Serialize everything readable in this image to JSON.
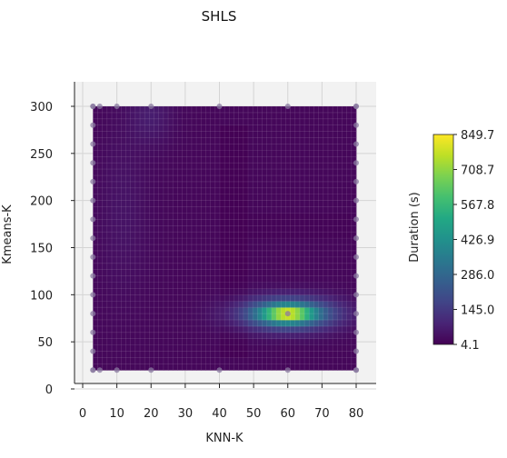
{
  "chart_data": {
    "type": "heatmap",
    "title": "SHLS",
    "xlabel": "KNN-K",
    "ylabel": "Kmeans-K",
    "xlim": [
      0,
      80
    ],
    "ylim": [
      0,
      300
    ],
    "x_ticks": [
      "0",
      "10",
      "20",
      "30",
      "40",
      "50",
      "60",
      "70",
      "80"
    ],
    "y_ticks": [
      "0",
      "50",
      "100",
      "150",
      "200",
      "250",
      "300"
    ],
    "data_extent": {
      "x": [
        3,
        80
      ],
      "y": [
        20,
        300
      ]
    },
    "colorbar": {
      "label": "Duration (s)",
      "ticks": [
        "4.1",
        "145.0",
        "286.0",
        "426.9",
        "567.8",
        "708.7",
        "849.7"
      ],
      "min": 4.1,
      "max": 849.7,
      "colormap": "viridis"
    },
    "sample_points": {
      "x": [
        3,
        5,
        10,
        20,
        40,
        60,
        80
      ],
      "y": [
        20,
        40,
        60,
        80,
        100,
        120,
        140,
        160,
        180,
        200,
        220,
        240,
        260,
        280,
        300
      ]
    },
    "peak": {
      "x": 60,
      "y": 80,
      "value": 849.7
    },
    "grid": true
  }
}
